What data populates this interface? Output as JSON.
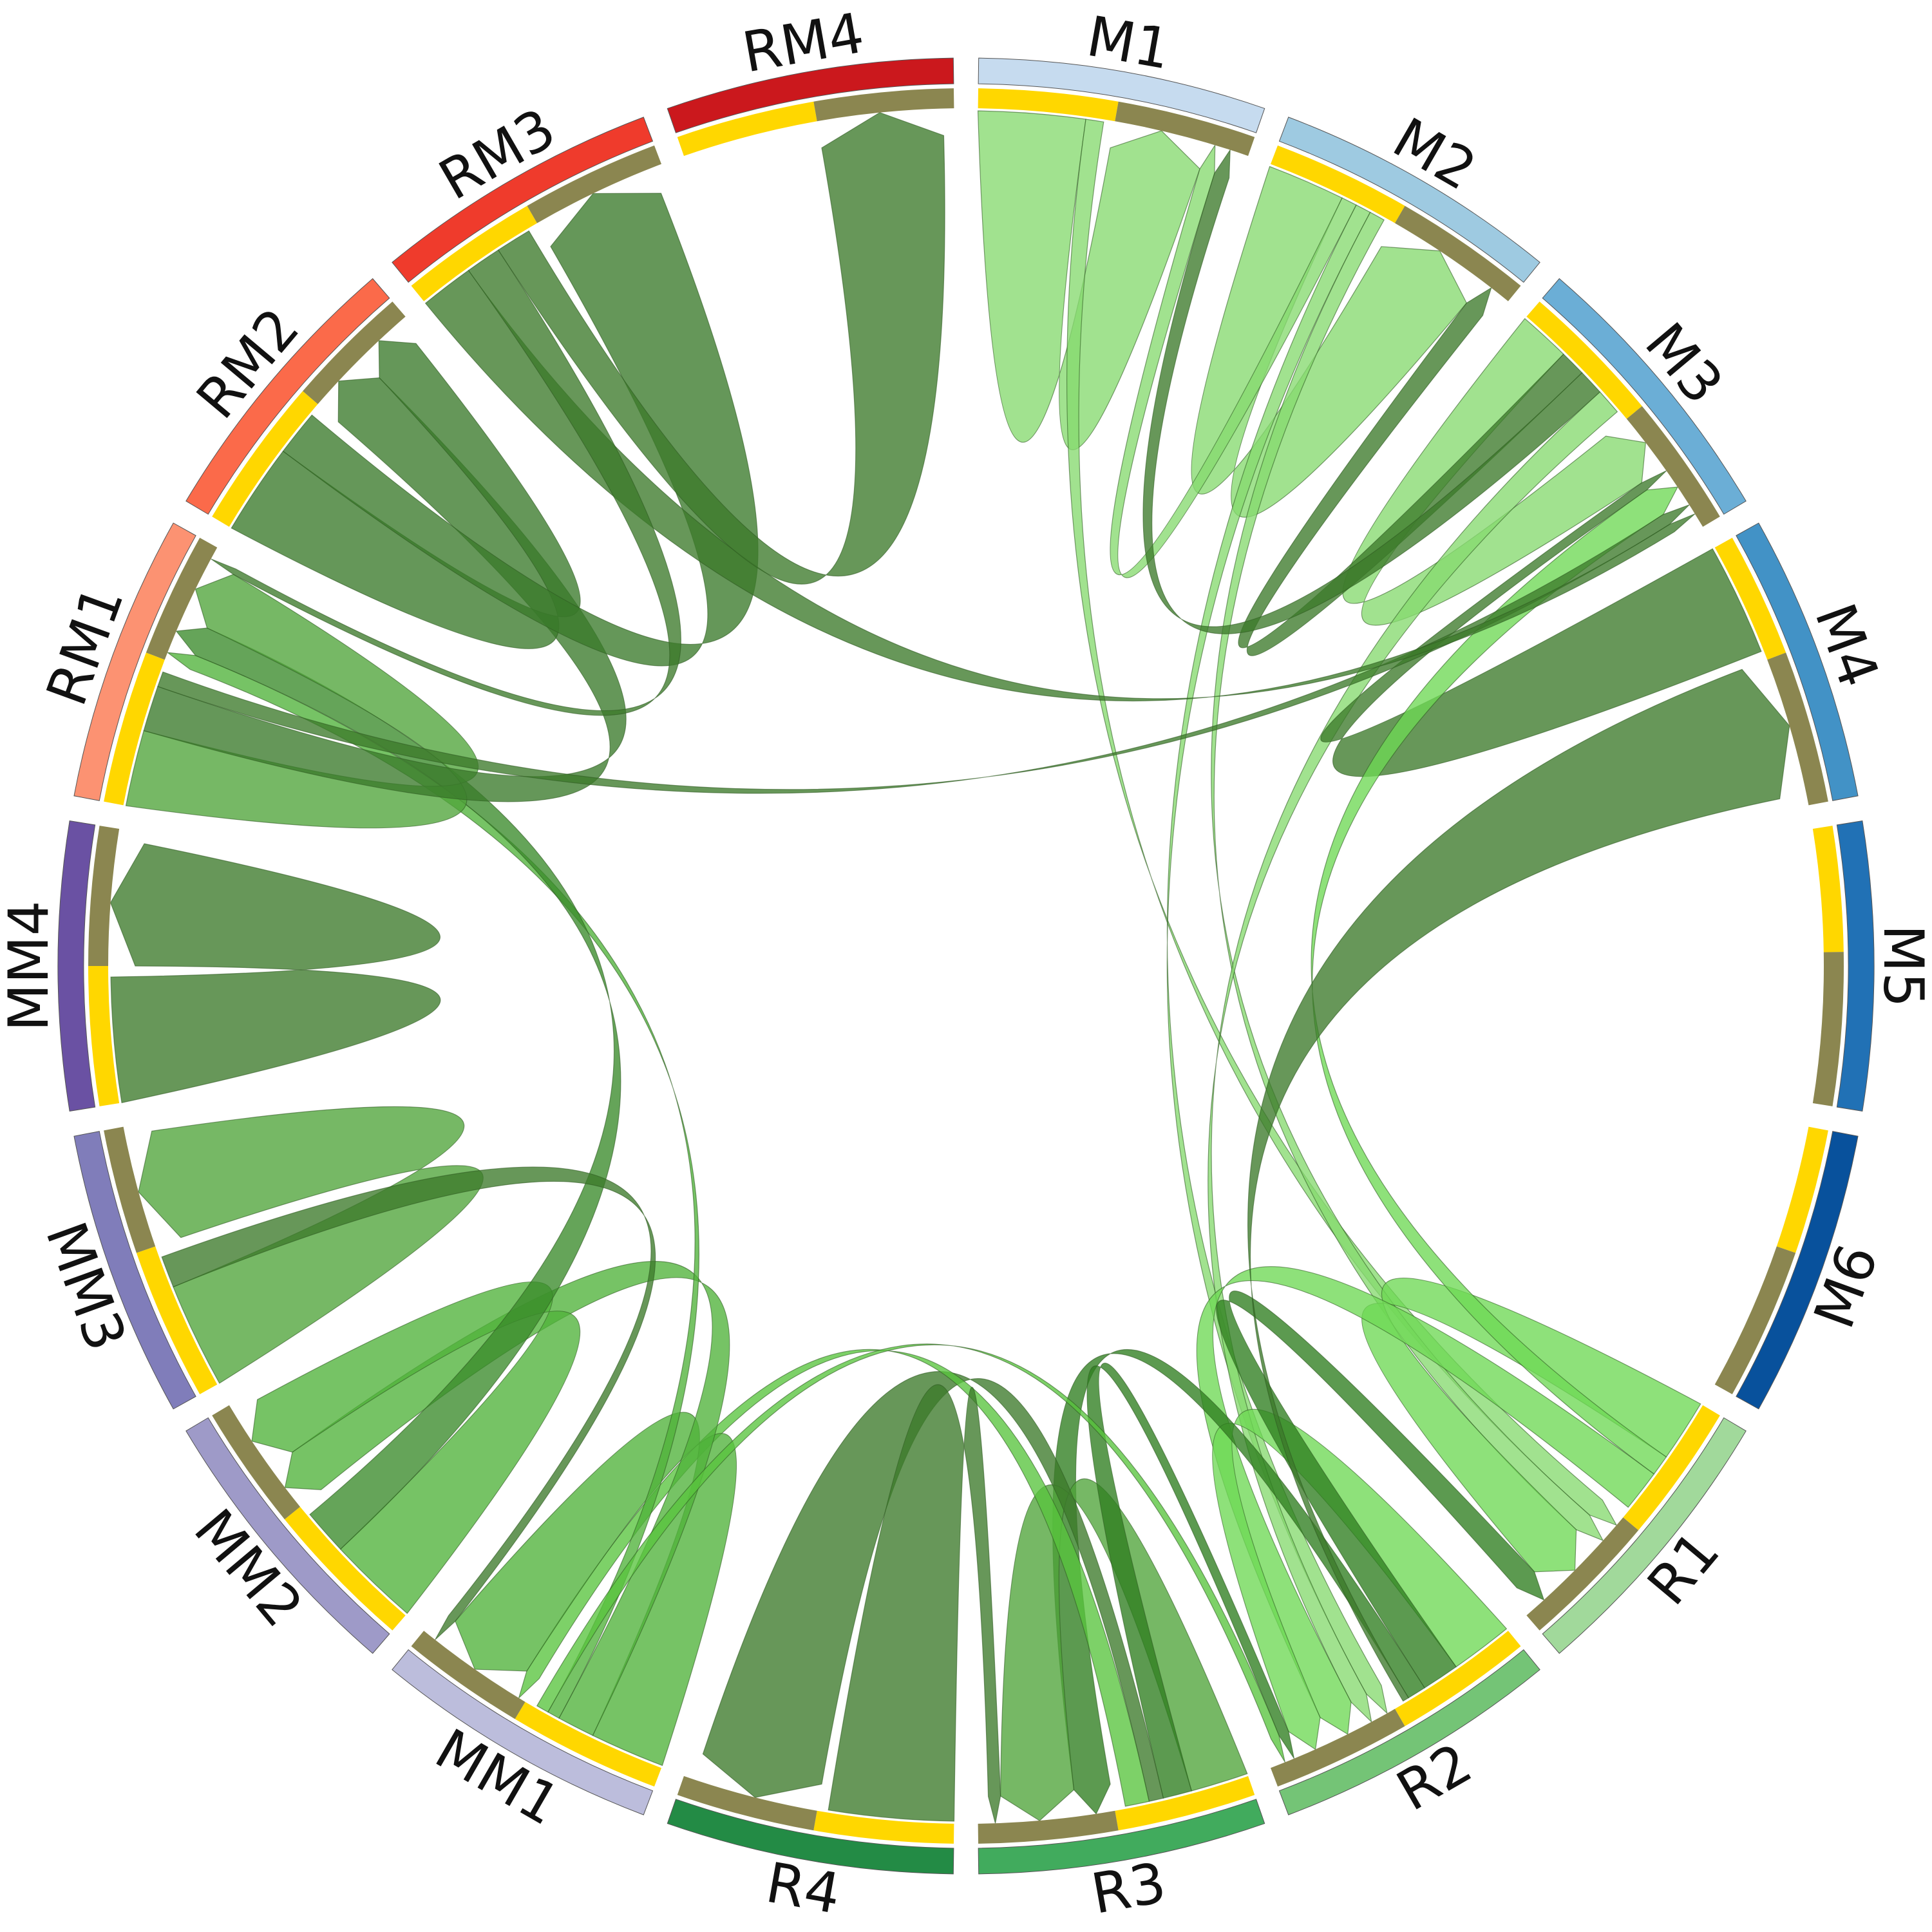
{
  "chart_data": {
    "type": "chord",
    "title": "",
    "sector_order": [
      "M1",
      "M2",
      "M3",
      "M4",
      "M5",
      "M6",
      "R1",
      "R2",
      "R3",
      "R4",
      "MM1",
      "MM2",
      "MM3",
      "MM4",
      "RM1",
      "RM2",
      "RM3",
      "RM4"
    ],
    "sectors": [
      {
        "id": "M1",
        "label": "M1",
        "color": "#c6dbef",
        "out_share": 0.5
      },
      {
        "id": "M2",
        "label": "M2",
        "color": "#9ecae1",
        "out_share": 0.5
      },
      {
        "id": "M3",
        "label": "M3",
        "color": "#6baed6",
        "out_share": 0.52
      },
      {
        "id": "M4",
        "label": "M4",
        "color": "#4292c6",
        "out_share": 0.45
      },
      {
        "id": "M5",
        "label": "M5",
        "color": "#2171b5",
        "out_share": 0.45
      },
      {
        "id": "M6",
        "label": "M6",
        "color": "#08519c",
        "out_share": 0.45
      },
      {
        "id": "R1",
        "label": "R1",
        "color": "#a1d99b",
        "out_share": 0.5
      },
      {
        "id": "R2",
        "label": "R2",
        "color": "#74c476",
        "out_share": 0.5
      },
      {
        "id": "R3",
        "label": "R3",
        "color": "#41ab5d",
        "out_share": 0.5
      },
      {
        "id": "R4",
        "label": "R4",
        "color": "#238b45",
        "out_share": 0.5
      },
      {
        "id": "MM1",
        "label": "MM1",
        "color": "#bcbddc",
        "out_share": 0.55
      },
      {
        "id": "MM2",
        "label": "MM2",
        "color": "#9e9ac8",
        "out_share": 0.55
      },
      {
        "id": "MM3",
        "label": "MM3",
        "color": "#807dba",
        "out_share": 0.55
      },
      {
        "id": "MM4",
        "label": "MM4",
        "color": "#6a51a3",
        "out_share": 0.5
      },
      {
        "id": "RM1",
        "label": "RM1",
        "color": "#fc9272",
        "out_share": 0.55
      },
      {
        "id": "RM2",
        "label": "RM2",
        "color": "#fb6a4a",
        "out_share": 0.55
      },
      {
        "id": "RM3",
        "label": "RM3",
        "color": "#ef3b2c",
        "out_share": 0.5
      },
      {
        "id": "RM4",
        "label": "RM4",
        "color": "#cb181d",
        "out_share": 0.5
      }
    ],
    "track_colors": {
      "outgoing": "#ffd700",
      "incoming": "#8b8650"
    },
    "links": [
      {
        "from": "M1",
        "to": "M1",
        "value": 6,
        "color": "#86da6f"
      },
      {
        "from": "M1",
        "to": "R1",
        "value": 1,
        "color": "#86da6f"
      },
      {
        "from": "M2",
        "to": "M2",
        "value": 5,
        "color": "#86da6f"
      },
      {
        "from": "M2",
        "to": "M1",
        "value": 1,
        "color": "#86da6f"
      },
      {
        "from": "M2",
        "to": "R2",
        "value": 1,
        "color": "#86da6f"
      },
      {
        "from": "M2",
        "to": "R1",
        "value": 1,
        "color": "#86da6f"
      },
      {
        "from": "M3",
        "to": "M3",
        "value": 2,
        "color": "#86da6f"
      },
      {
        "from": "M3",
        "to": "M2",
        "value": 1,
        "color": "#3c7a2a"
      },
      {
        "from": "M3",
        "to": "M1",
        "value": 1,
        "color": "#3c7a2a"
      },
      {
        "from": "M3",
        "to": "R2",
        "value": 1,
        "color": "#86da6f"
      },
      {
        "from": "M4",
        "to": "M3",
        "value": 0.3,
        "color": "#3c7a2a"
      },
      {
        "from": "R1",
        "to": "R1",
        "value": 3,
        "color": "#6ed955"
      },
      {
        "from": "R1",
        "to": "M3",
        "value": 1,
        "color": "#6ed955"
      },
      {
        "from": "R1",
        "to": "R2",
        "value": 2,
        "color": "#6ed955"
      },
      {
        "from": "R2",
        "to": "R2",
        "value": 2,
        "color": "#6ed955"
      },
      {
        "from": "R2",
        "to": "R1",
        "value": 1.2,
        "color": "#2e7d1f"
      },
      {
        "from": "R2",
        "to": "R3",
        "value": 0.6,
        "color": "#2e7d1f"
      },
      {
        "from": "R2",
        "to": "M4",
        "value": 0.2,
        "color": "#3c7a2a"
      },
      {
        "from": "R3",
        "to": "R3",
        "value": 1.2,
        "color": "#4fa43a"
      },
      {
        "from": "R3",
        "to": "R2",
        "value": 0.6,
        "color": "#2e7d1f"
      },
      {
        "from": "R3",
        "to": "R4",
        "value": 0.3,
        "color": "#3c7a2a"
      },
      {
        "from": "R3",
        "to": "MM1",
        "value": 0.5,
        "color": "#58c43d"
      },
      {
        "from": "R4",
        "to": "R3",
        "value": 0.2,
        "color": "#3c7a2a"
      },
      {
        "from": "MM1",
        "to": "MM1",
        "value": 3,
        "color": "#4fb23a"
      },
      {
        "from": "MM1",
        "to": "MM2",
        "value": 1.5,
        "color": "#4fb23a"
      },
      {
        "from": "MM1",
        "to": "RM1",
        "value": 0.5,
        "color": "#4fb23a"
      },
      {
        "from": "MM1",
        "to": "R2",
        "value": 0.5,
        "color": "#58c43d"
      },
      {
        "from": "MM2",
        "to": "MM2",
        "value": 2,
        "color": "#4fb23a"
      },
      {
        "from": "MM2",
        "to": "RM1",
        "value": 1,
        "color": "#3a8a2a"
      },
      {
        "from": "MM3",
        "to": "MM3",
        "value": 1,
        "color": "#4fa43a"
      },
      {
        "from": "MM3",
        "to": "MM1",
        "value": 0.3,
        "color": "#3c7a2a"
      },
      {
        "from": "MM4",
        "to": "MM4",
        "value": 0.3,
        "color": "#3c7a2a"
      },
      {
        "from": "RM1",
        "to": "RM1",
        "value": 2,
        "color": "#4fa43a"
      },
      {
        "from": "RM1",
        "to": "RM2",
        "value": 1.2,
        "color": "#3a7a2a"
      },
      {
        "from": "RM1",
        "to": "M3",
        "value": 0.4,
        "color": "#3c7a2a"
      },
      {
        "from": "RM2",
        "to": "RM2",
        "value": 1,
        "color": "#3a7a2a"
      },
      {
        "from": "RM2",
        "to": "RM3",
        "value": 0.5,
        "color": "#3a7a2a"
      },
      {
        "from": "RM3",
        "to": "M3",
        "value": 0.3,
        "color": "#3c7a2a"
      },
      {
        "from": "RM3",
        "to": "RM1",
        "value": 0.2,
        "color": "#3c7a2a"
      },
      {
        "from": "RM3",
        "to": "RM4",
        "value": 0.2,
        "color": "#3c7a2a"
      }
    ]
  }
}
